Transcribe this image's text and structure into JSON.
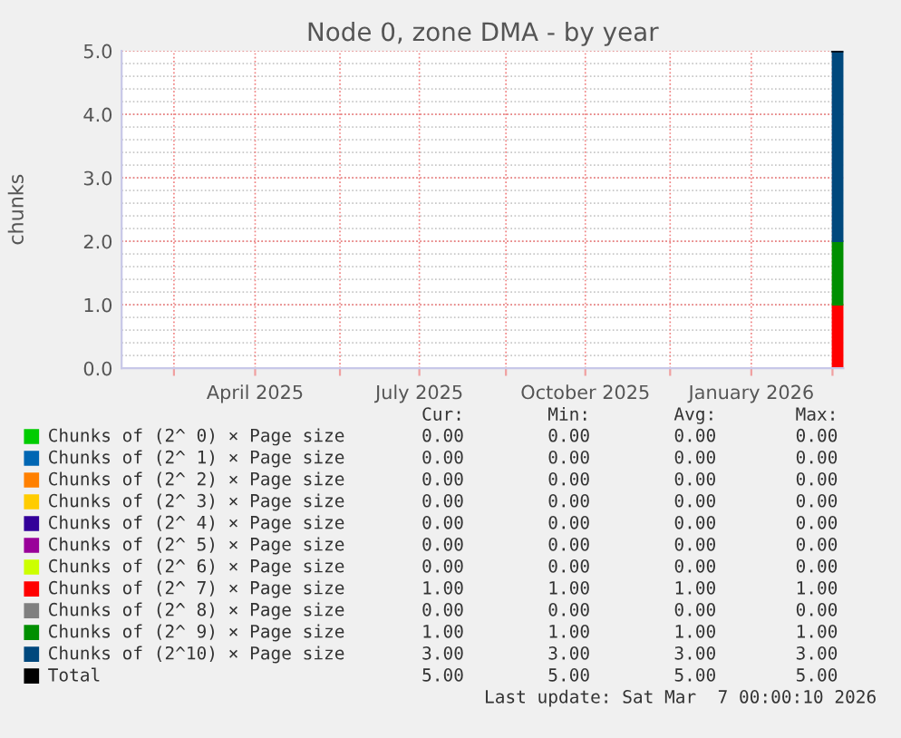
{
  "chart_data": {
    "type": "area",
    "title": "Node 0, zone DMA - by year",
    "ylabel": "chunks",
    "stacked": true,
    "xlim": [
      "2025-01-31",
      "2026-03-07"
    ],
    "xticks": [
      {
        "value": "2025-03-01",
        "label": null
      },
      {
        "value": "2025-04-15",
        "label": "April 2025"
      },
      {
        "value": "2025-06-01",
        "label": null
      },
      {
        "value": "2025-07-15",
        "label": "July 2025"
      },
      {
        "value": "2025-09-01",
        "label": null
      },
      {
        "value": "2025-10-15",
        "label": "October 2025"
      },
      {
        "value": "2025-12-01",
        "label": null
      },
      {
        "value": "2026-01-15",
        "label": "January 2026"
      },
      {
        "value": "2026-03-01",
        "label": null
      }
    ],
    "ylim": [
      0,
      5
    ],
    "yticks": [
      {
        "value": 0,
        "label": "0.0"
      },
      {
        "value": 1,
        "label": "1.0"
      },
      {
        "value": 2,
        "label": "2.0"
      },
      {
        "value": 3,
        "label": "3.0"
      },
      {
        "value": 4,
        "label": "4.0"
      },
      {
        "value": 5,
        "label": "5.0"
      }
    ],
    "grid": true,
    "legend": "bottom",
    "x": [
      "2026-03-01",
      "2026-03-07"
    ],
    "series": [
      {
        "name": "Chunks of (2^ 0) × Page size",
        "color": "#00cc00",
        "values": [
          null,
          null
        ]
      },
      {
        "name": "Chunks of (2^ 1) × Page size",
        "color": "#0066b3",
        "values": [
          null,
          null
        ]
      },
      {
        "name": "Chunks of (2^ 2) × Page size",
        "color": "#ff8000",
        "values": [
          null,
          null
        ]
      },
      {
        "name": "Chunks of (2^ 3) × Page size",
        "color": "#ffcc00",
        "values": [
          null,
          null
        ]
      },
      {
        "name": "Chunks of (2^ 4) × Page size",
        "color": "#330099",
        "values": [
          null,
          null
        ]
      },
      {
        "name": "Chunks of (2^ 5) × Page size",
        "color": "#990099",
        "values": [
          null,
          null
        ]
      },
      {
        "name": "Chunks of (2^ 6) × Page size",
        "color": "#ccff00",
        "values": [
          null,
          null
        ]
      },
      {
        "name": "Chunks of (2^ 7) × Page size",
        "color": "#ff0000",
        "values": [
          1,
          1
        ]
      },
      {
        "name": "Chunks of (2^ 8) × Page size",
        "color": "#808080",
        "values": [
          null,
          null
        ]
      },
      {
        "name": "Chunks of (2^ 9) × Page size",
        "color": "#008f00",
        "values": [
          1,
          1
        ]
      },
      {
        "name": "Chunks of (2^10) × Page size",
        "color": "#00487d",
        "values": [
          3,
          3
        ]
      },
      {
        "name": "Total",
        "color": "#000000",
        "type": "line",
        "values": [
          5,
          5
        ]
      }
    ],
    "annotations": [
      "Cur:",
      "Min:",
      "Avg:",
      "Max:",
      "0.00",
      "0.00",
      "0.00",
      "0.00",
      "0.00",
      "0.00",
      "0.00",
      "0.00",
      "0.00",
      "0.00",
      "0.00",
      "0.00",
      "0.00",
      "0.00",
      "0.00",
      "0.00",
      "0.00",
      "0.00",
      "0.00",
      "0.00",
      "0.00",
      "0.00",
      "0.00",
      "0.00",
      "0.00",
      "0.00",
      "0.00",
      "0.00",
      "1.00",
      "1.00",
      "1.00",
      "1.00",
      "0.00",
      "0.00",
      "0.00",
      "0.00",
      "1.00",
      "1.00",
      "1.00",
      "1.00",
      "3.00",
      "3.00",
      "3.00",
      "3.00",
      "5.00",
      "5.00",
      "5.00",
      "5.00",
      "Last update: Sat Mar  7 00:00:10 2026"
    ]
  }
}
